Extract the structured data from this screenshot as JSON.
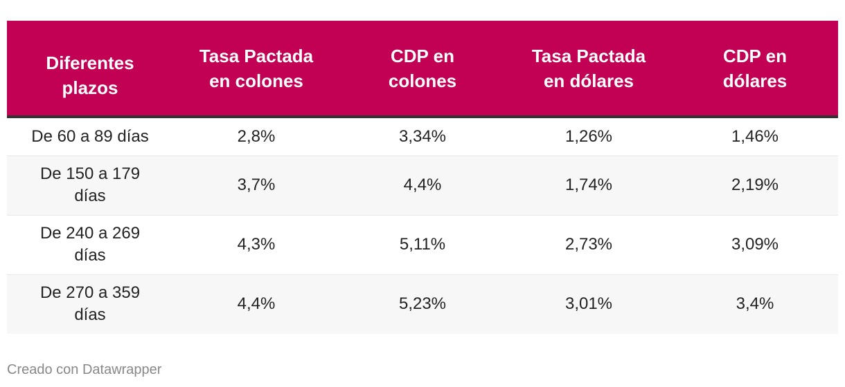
{
  "chart_data": {
    "type": "table",
    "columns": [
      "Diferentes plazos",
      "Tasa Pactada en colones",
      "CDP en colones",
      "Tasa Pactada en dólares",
      "CDP en dólares"
    ],
    "rows": [
      [
        "De 60 a 89 días",
        "2,8%",
        "3,34%",
        "1,26%",
        "1,46%"
      ],
      [
        "De 150 a 179 días",
        "3,7%",
        "4,4%",
        "1,74%",
        "2,19%"
      ],
      [
        "De 240 a 269 días",
        "4,3%",
        "5,11%",
        "2,73%",
        "3,09%"
      ],
      [
        "De 270 a 359 días",
        "4,4%",
        "5,23%",
        "3,01%",
        "3,4%"
      ]
    ]
  },
  "colors": {
    "header_background": "#c20054",
    "header_text": "#ffffff",
    "stripe": "#f7f7f7"
  },
  "footer": {
    "credit": "Creado con Datawrapper"
  }
}
